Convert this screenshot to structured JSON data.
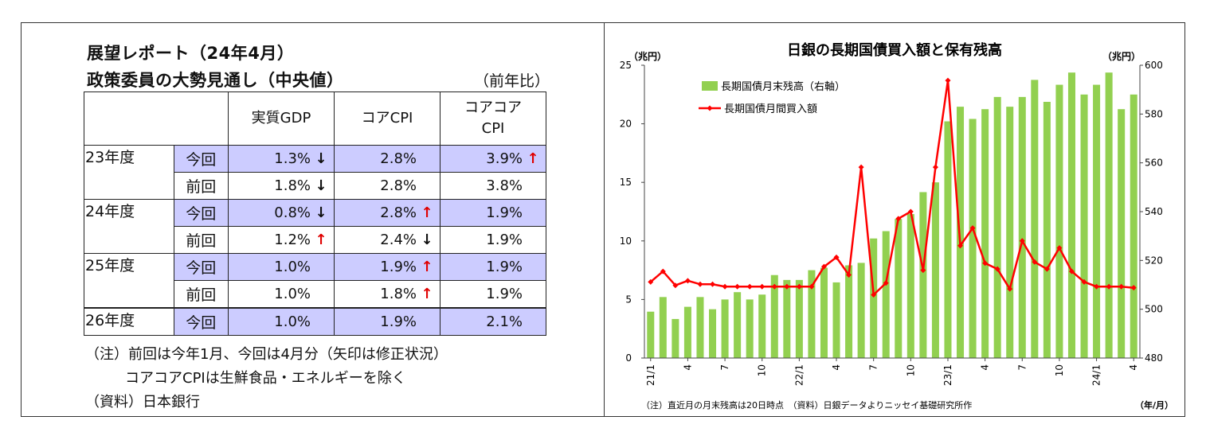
{
  "table": {
    "title1": "展望レポート（24年4月）",
    "title2": "政策委員の大勢見通し（中央値）",
    "unit": "（前年比）",
    "headers": [
      "実質GDP",
      "コアCPI",
      "コアコア\nCPI"
    ],
    "rows": [
      {
        "year": "23年度",
        "kind": "今回",
        "now": true,
        "gdp": "1.3%",
        "gdp_arrow": "down",
        "cpi": "2.8%",
        "cpi_arrow": "",
        "core": "3.9%",
        "core_arrow": "up"
      },
      {
        "year": "",
        "kind": "前回",
        "now": false,
        "gdp": "1.8%",
        "gdp_arrow": "down",
        "cpi": "2.8%",
        "cpi_arrow": "",
        "core": "3.8%",
        "core_arrow": ""
      },
      {
        "year": "24年度",
        "kind": "今回",
        "now": true,
        "gdp": "0.8%",
        "gdp_arrow": "down",
        "cpi": "2.8%",
        "cpi_arrow": "up",
        "core": "1.9%",
        "core_arrow": ""
      },
      {
        "year": "",
        "kind": "前回",
        "now": false,
        "gdp": "1.2%",
        "gdp_arrow": "up",
        "cpi": "2.4%",
        "cpi_arrow": "down",
        "core": "1.9%",
        "core_arrow": ""
      },
      {
        "year": "25年度",
        "kind": "今回",
        "now": true,
        "gdp": "1.0%",
        "gdp_arrow": "",
        "cpi": "1.9%",
        "cpi_arrow": "up",
        "core": "1.9%",
        "core_arrow": ""
      },
      {
        "year": "",
        "kind": "前回",
        "now": false,
        "gdp": "1.0%",
        "gdp_arrow": "",
        "cpi": "1.8%",
        "cpi_arrow": "up",
        "core": "1.9%",
        "core_arrow": ""
      },
      {
        "year": "26年度",
        "kind": "今回",
        "now": true,
        "gdp": "1.0%",
        "gdp_arrow": "",
        "cpi": "1.9%",
        "cpi_arrow": "",
        "core": "2.1%",
        "core_arrow": ""
      }
    ],
    "notes": [
      "（注）前回は今年1月、今回は4月分（矢印は修正状況）",
      "コアコアCPIは生鮮食品・エネルギーを除く",
      "（資料）日本銀行"
    ],
    "arrow_glyphs": {
      "up": "↑",
      "down": "↓"
    }
  },
  "chart_data": {
    "type": "bar+line",
    "title": "日銀の長期国債買入額と保有残高",
    "left_unit": "（兆円）",
    "right_unit": "（兆円）",
    "xlabel": "（年/月）",
    "footnote": "（注）直近月の月末残高は20日時点　（資料）日銀データよりニッセイ基礎研究所作",
    "x_tick_labels": [
      {
        "i": 0,
        "label": "21/1"
      },
      {
        "i": 3,
        "label": "4"
      },
      {
        "i": 6,
        "label": "7"
      },
      {
        "i": 9,
        "label": "10"
      },
      {
        "i": 12,
        "label": "22/1"
      },
      {
        "i": 15,
        "label": "4"
      },
      {
        "i": 18,
        "label": "7"
      },
      {
        "i": 21,
        "label": "10"
      },
      {
        "i": 24,
        "label": "23/1"
      },
      {
        "i": 27,
        "label": "4"
      },
      {
        "i": 30,
        "label": "7"
      },
      {
        "i": 33,
        "label": "10"
      },
      {
        "i": 36,
        "label": "24/1"
      },
      {
        "i": 39,
        "label": "4"
      }
    ],
    "left_axis": {
      "min": 0,
      "max": 25,
      "ticks": [
        0,
        5,
        10,
        15,
        20,
        25
      ]
    },
    "right_axis": {
      "min": 480,
      "max": 600,
      "ticks": [
        480,
        500,
        520,
        540,
        560,
        580,
        600
      ]
    },
    "series": [
      {
        "name": "長期国債月末残高（右軸）",
        "axis": "right",
        "kind": "bar",
        "color": "#92d050",
        "values": [
          499,
          505,
          496,
          501,
          505,
          500,
          504,
          507,
          504,
          506,
          514,
          512,
          512,
          516,
          517,
          511,
          518,
          519,
          529,
          532,
          537,
          539,
          548,
          552,
          577,
          583,
          578,
          582,
          587,
          583,
          587,
          594,
          585,
          592,
          597,
          588,
          592,
          597,
          582,
          588
        ]
      },
      {
        "name": "長期国債月間買入額",
        "axis": "left",
        "kind": "line",
        "color": "#ff0000",
        "values": [
          6.5,
          7.4,
          6.2,
          6.6,
          6.3,
          6.3,
          6.1,
          6.1,
          6.1,
          6.1,
          6.1,
          6.1,
          6.1,
          6.1,
          7.8,
          8.6,
          7.1,
          16.3,
          5.4,
          6.4,
          11.9,
          12.5,
          7.5,
          16.3,
          23.7,
          9.6,
          11.1,
          8.1,
          7.6,
          5.9,
          10.0,
          8.2,
          7.6,
          9.4,
          7.4,
          6.5,
          6.1,
          6.1,
          6.1,
          6.0
        ]
      }
    ]
  }
}
